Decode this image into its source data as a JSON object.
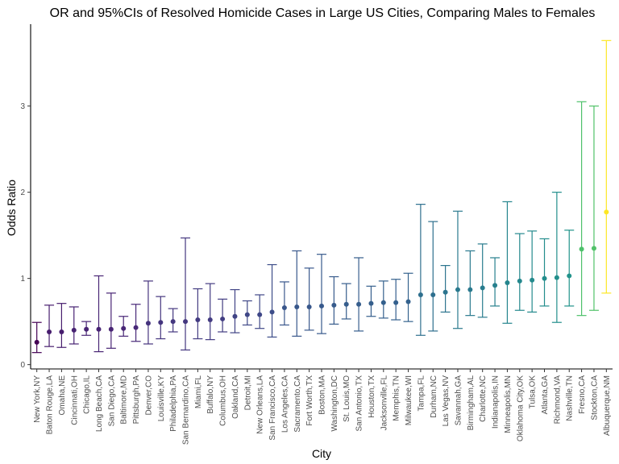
{
  "chart_data": {
    "type": "scatter",
    "title": "OR and 95%CIs of Resolved Homicide Cases in Large US Cities, Comparing Males to Females",
    "xlabel": "City",
    "ylabel": "Odds Ratio",
    "ylim": [
      -0.05,
      3.95
    ],
    "yticks": [
      0,
      1,
      2,
      3
    ],
    "grid": false,
    "legend": "none",
    "color_scale": "viridis",
    "categories": [
      "New York,NY",
      "Baton Rouge,LA",
      "Omaha,NE",
      "Cincinnati,OH",
      "Chicago,IL",
      "Long Beach,CA",
      "San Diego,CA",
      "Baltimore,MD",
      "Pittsburgh,PA",
      "Denver,CO",
      "Louisville,KY",
      "Philadelphia,PA",
      "San Bernardino,CA",
      "Miami,FL",
      "Buffalo,NY",
      "Columbus,OH",
      "Oakland,CA",
      "Detroit,MI",
      "New Orleans,LA",
      "San Francisco,CA",
      "Los Angeles,CA",
      "Sacramento,CA",
      "Fort Worth,TX",
      "Boston,MA",
      "Washington,DC",
      "St. Louis,MO",
      "San Antonio,TX",
      "Houston,TX",
      "Jacksonville,FL",
      "Memphis,TN",
      "Milwaukee,WI",
      "Tampa,FL",
      "Durham,NC",
      "Las Vegas,NV",
      "Savannah,GA",
      "Birmingham,AL",
      "Charlotte,NC",
      "Indianapolis,IN",
      "Minneapolis,MN",
      "Oklahoma City,OK",
      "Tulsa,OK",
      "Atlanta,GA",
      "Richmond,VA",
      "Nashville,TN",
      "Fresno,CA",
      "Stockton,CA",
      "Albuquerque,NM"
    ],
    "estimate": [
      0.26,
      0.38,
      0.38,
      0.4,
      0.41,
      0.41,
      0.41,
      0.42,
      0.43,
      0.48,
      0.49,
      0.5,
      0.5,
      0.52,
      0.52,
      0.53,
      0.56,
      0.58,
      0.58,
      0.61,
      0.66,
      0.67,
      0.67,
      0.68,
      0.69,
      0.7,
      0.7,
      0.71,
      0.72,
      0.72,
      0.73,
      0.81,
      0.81,
      0.84,
      0.87,
      0.87,
      0.89,
      0.92,
      0.95,
      0.97,
      0.98,
      1.0,
      1.01,
      1.03,
      1.34,
      1.35,
      1.77
    ],
    "ci_low": [
      0.14,
      0.21,
      0.2,
      0.24,
      0.34,
      0.15,
      0.19,
      0.33,
      0.27,
      0.24,
      0.3,
      0.38,
      0.17,
      0.3,
      0.29,
      0.38,
      0.37,
      0.46,
      0.42,
      0.32,
      0.46,
      0.33,
      0.4,
      0.36,
      0.47,
      0.53,
      0.39,
      0.56,
      0.54,
      0.52,
      0.5,
      0.34,
      0.39,
      0.61,
      0.42,
      0.57,
      0.55,
      0.68,
      0.48,
      0.63,
      0.61,
      0.68,
      0.49,
      0.68,
      0.57,
      0.63,
      0.83
    ],
    "ci_high": [
      0.49,
      0.69,
      0.71,
      0.67,
      0.5,
      1.03,
      0.83,
      0.56,
      0.7,
      0.97,
      0.79,
      0.65,
      1.47,
      0.88,
      0.94,
      0.76,
      0.87,
      0.74,
      0.81,
      1.16,
      0.96,
      1.32,
      1.12,
      1.28,
      1.02,
      0.94,
      1.24,
      0.91,
      0.97,
      0.99,
      1.06,
      1.86,
      1.66,
      1.15,
      1.78,
      1.32,
      1.4,
      1.24,
      1.89,
      1.52,
      1.55,
      1.46,
      2.0,
      1.56,
      3.05,
      3.0,
      3.76
    ]
  }
}
